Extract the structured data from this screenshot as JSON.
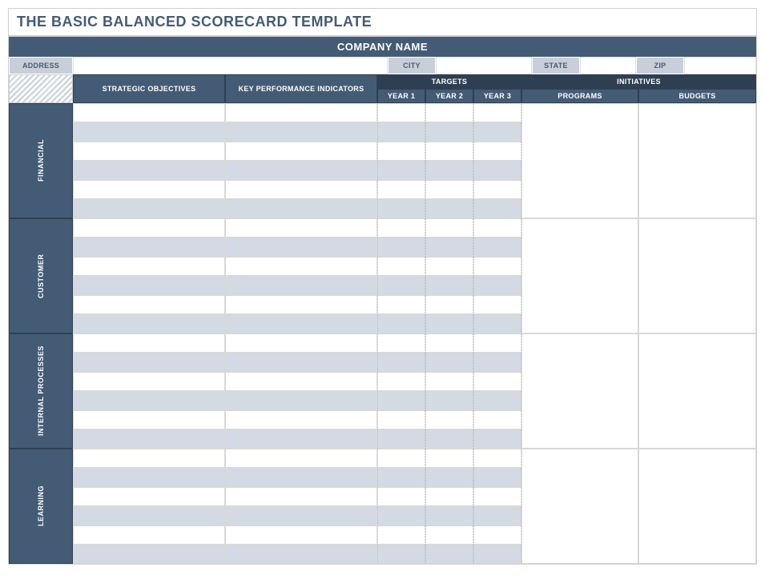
{
  "title": "THE BASIC BALANCED SCORECARD TEMPLATE",
  "company_label": "COMPANY NAME",
  "address_row": {
    "address_label": "ADDRESS",
    "city_label": "CITY",
    "state_label": "STATE",
    "zip_label": "ZIP",
    "address_value": "",
    "city_value": "",
    "state_value": "",
    "zip_value": ""
  },
  "headers": {
    "strategic": "STRATEGIC OBJECTIVES",
    "kpi": "KEY PERFORMANCE INDICATORS",
    "targets": "TARGETS",
    "year1": "YEAR 1",
    "year2": "YEAR 2",
    "year3": "YEAR 3",
    "initiatives": "INITIATIVES",
    "programs": "PROGRAMS",
    "budgets": "BUDGETS"
  },
  "perspectives": [
    {
      "label": "FINANCIAL",
      "rows": 6
    },
    {
      "label": "CUSTOMER",
      "rows": 6
    },
    {
      "label": "INTERNAL PROCESSES",
      "rows": 6
    },
    {
      "label": "LEARNING",
      "rows": 6
    }
  ],
  "colors": {
    "header_bg": "#445b75",
    "header_dark": "#2f3f52",
    "label_bg": "#c8cfd9",
    "stripe_dark": "#d4dae3",
    "stripe_light": "#ffffff",
    "border": "#d8d8d8"
  }
}
